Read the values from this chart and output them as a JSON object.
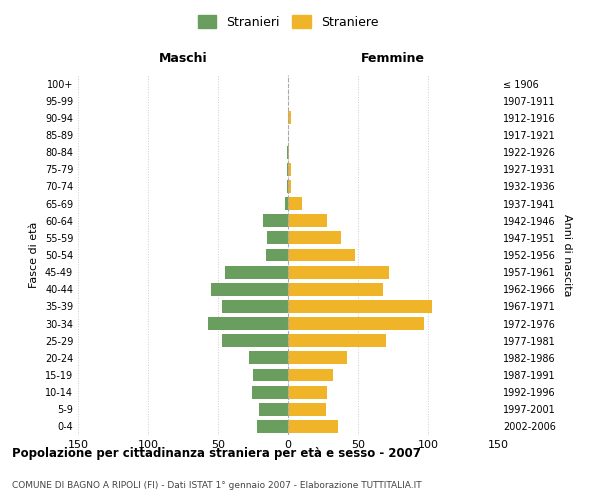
{
  "age_groups": [
    "0-4",
    "5-9",
    "10-14",
    "15-19",
    "20-24",
    "25-29",
    "30-34",
    "35-39",
    "40-44",
    "45-49",
    "50-54",
    "55-59",
    "60-64",
    "65-69",
    "70-74",
    "75-79",
    "80-84",
    "85-89",
    "90-94",
    "95-99",
    "100+"
  ],
  "birth_years": [
    "2002-2006",
    "1997-2001",
    "1992-1996",
    "1987-1991",
    "1982-1986",
    "1977-1981",
    "1972-1976",
    "1967-1971",
    "1962-1966",
    "1957-1961",
    "1952-1956",
    "1947-1951",
    "1942-1946",
    "1937-1941",
    "1932-1936",
    "1927-1931",
    "1922-1926",
    "1917-1921",
    "1912-1916",
    "1907-1911",
    "≤ 1906"
  ],
  "males": [
    22,
    21,
    26,
    25,
    28,
    47,
    57,
    47,
    55,
    45,
    16,
    15,
    18,
    2,
    1,
    1,
    1,
    0,
    0,
    0,
    0
  ],
  "females": [
    36,
    27,
    28,
    32,
    42,
    70,
    97,
    103,
    68,
    72,
    48,
    38,
    28,
    10,
    2,
    2,
    1,
    0,
    2,
    0,
    0
  ],
  "male_color": "#6a9e5e",
  "female_color": "#f0b429",
  "background_color": "#ffffff",
  "grid_color": "#cccccc",
  "title": "Popolazione per cittadinanza straniera per età e sesso - 2007",
  "subtitle": "COMUNE DI BAGNO A RIPOLI (FI) - Dati ISTAT 1° gennaio 2007 - Elaborazione TUTTITALIA.IT",
  "xlabel_left": "Maschi",
  "xlabel_right": "Femmine",
  "ylabel_left": "Fasce di età",
  "ylabel_right": "Anni di nascita",
  "legend_male": "Stranieri",
  "legend_female": "Straniere",
  "xlim": 150
}
